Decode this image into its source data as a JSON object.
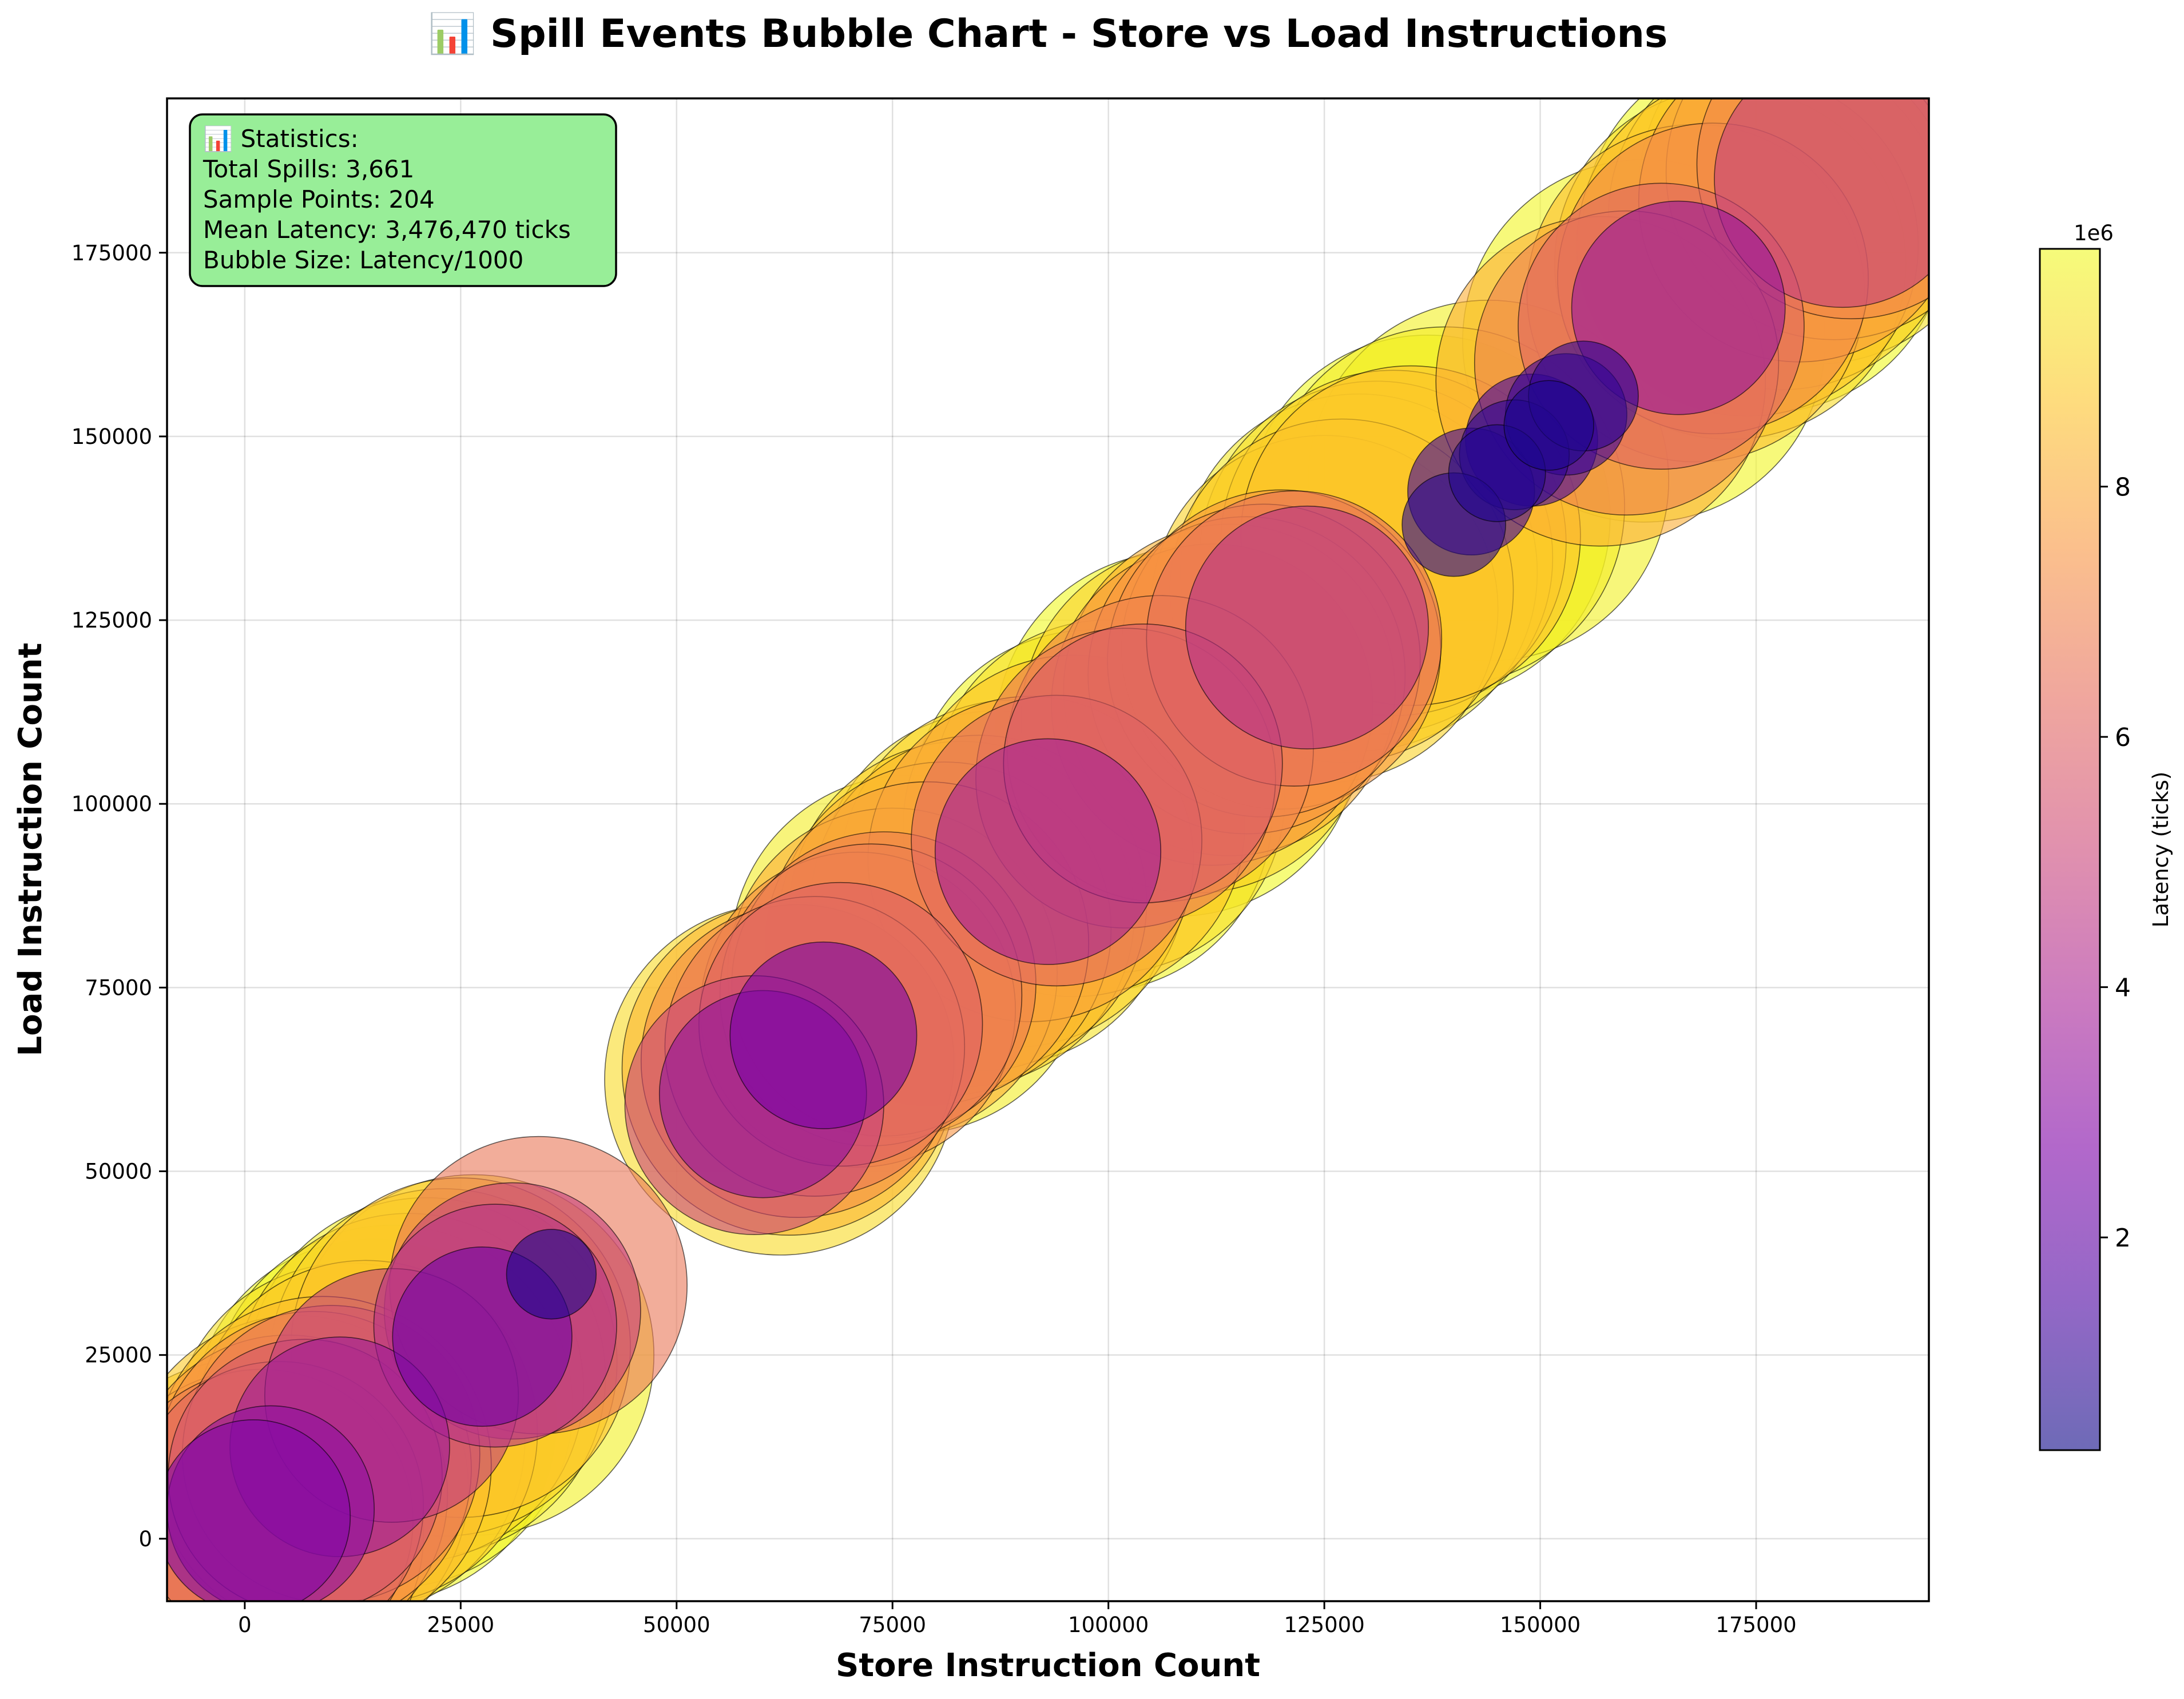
{
  "chart_data": {
    "type": "scatter",
    "title": "📊 Spill Events Bubble Chart - Store vs Load Instructions",
    "xlabel": "Store Instruction Count",
    "ylabel": "Load Instruction Count",
    "xlim": [
      -9000,
      195000
    ],
    "ylim": [
      -8500,
      196000
    ],
    "xticks": [
      0,
      25000,
      50000,
      75000,
      100000,
      125000,
      150000,
      175000
    ],
    "yticks": [
      0,
      25000,
      50000,
      75000,
      100000,
      125000,
      150000,
      175000
    ],
    "grid": true,
    "colormap": "plasma",
    "colorbar": {
      "label": "Latency (ticks)",
      "multiplier": "1e6",
      "ticks": [
        2,
        4,
        6,
        8
      ],
      "range": [
        0.3,
        9.9
      ]
    },
    "stats_box": {
      "lines": [
        "📊 Statistics:",
        "Total Spills: 3,661",
        "Sample Points: 204",
        "Mean Latency: 3,476,470 ticks",
        "Bubble Size: Latency/1000"
      ],
      "background": "#98ee98"
    },
    "points": [
      {
        "x": 0,
        "y": 1000,
        "latency": 8.8
      },
      {
        "x": 1500,
        "y": 500,
        "latency": 8.2
      },
      {
        "x": 2000,
        "y": 2500,
        "latency": 6.8
      },
      {
        "x": 1000,
        "y": 3000,
        "latency": 2.8
      },
      {
        "x": 3000,
        "y": 4000,
        "latency": 3.2
      },
      {
        "x": 4000,
        "y": 4500,
        "latency": 6.2
      },
      {
        "x": 5000,
        "y": 6000,
        "latency": 7.6
      },
      {
        "x": 6000,
        "y": 7000,
        "latency": 8.8
      },
      {
        "x": 7000,
        "y": 8500,
        "latency": 5.6
      },
      {
        "x": 8000,
        "y": 9500,
        "latency": 7.4
      },
      {
        "x": 9000,
        "y": 10000,
        "latency": 8.5
      },
      {
        "x": 10000,
        "y": 11500,
        "latency": 6.6
      },
      {
        "x": 11000,
        "y": 12500,
        "latency": 3.6
      },
      {
        "x": 12000,
        "y": 13500,
        "latency": 9.3
      },
      {
        "x": 14000,
        "y": 14500,
        "latency": 8.8
      },
      {
        "x": 15000,
        "y": 16000,
        "latency": 9.9
      },
      {
        "x": 17000,
        "y": 18000,
        "latency": 9.8
      },
      {
        "x": 17000,
        "y": 19500,
        "latency": 4.8
      },
      {
        "x": 19000,
        "y": 20500,
        "latency": 9.1
      },
      {
        "x": 21000,
        "y": 22000,
        "latency": 9.6
      },
      {
        "x": 23000,
        "y": 24000,
        "latency": 9.0
      },
      {
        "x": 25000,
        "y": 26000,
        "latency": 8.6
      },
      {
        "x": 26500,
        "y": 25000,
        "latency": 9.7
      },
      {
        "x": 27500,
        "y": 27500,
        "latency": 2.4
      },
      {
        "x": 29000,
        "y": 29000,
        "latency": 4.4
      },
      {
        "x": 31000,
        "y": 31000,
        "latency": 4.9
      },
      {
        "x": 34000,
        "y": 34500,
        "latency": 6.6
      },
      {
        "x": 35500,
        "y": 36000,
        "latency": 0.6
      },
      {
        "x": 59000,
        "y": 59000,
        "latency": 5.0
      },
      {
        "x": 60000,
        "y": 60500,
        "latency": 3.2
      },
      {
        "x": 62000,
        "y": 62500,
        "latency": 9.2
      },
      {
        "x": 63000,
        "y": 64000,
        "latency": 8.3
      },
      {
        "x": 64000,
        "y": 65000,
        "latency": 7.3
      },
      {
        "x": 66000,
        "y": 67000,
        "latency": 6.7
      },
      {
        "x": 67000,
        "y": 68500,
        "latency": 2.6
      },
      {
        "x": 69000,
        "y": 70000,
        "latency": 6.0
      },
      {
        "x": 71000,
        "y": 72000,
        "latency": 7.4
      },
      {
        "x": 72500,
        "y": 74000,
        "latency": 6.8
      },
      {
        "x": 74000,
        "y": 75500,
        "latency": 6.9
      },
      {
        "x": 75000,
        "y": 77000,
        "latency": 8.1
      },
      {
        "x": 77000,
        "y": 79500,
        "latency": 9.6
      },
      {
        "x": 79000,
        "y": 81000,
        "latency": 7.8
      },
      {
        "x": 81000,
        "y": 83000,
        "latency": 8.3
      },
      {
        "x": 83000,
        "y": 85000,
        "latency": 8.9
      },
      {
        "x": 85000,
        "y": 86500,
        "latency": 8.4
      },
      {
        "x": 87000,
        "y": 88500,
        "latency": 9.4
      },
      {
        "x": 89000,
        "y": 90500,
        "latency": 9.0
      },
      {
        "x": 91000,
        "y": 92500,
        "latency": 7.9
      },
      {
        "x": 93000,
        "y": 93500,
        "latency": 3.8
      },
      {
        "x": 94000,
        "y": 95000,
        "latency": 6.3
      },
      {
        "x": 96000,
        "y": 97000,
        "latency": 8.7
      },
      {
        "x": 98000,
        "y": 99000,
        "latency": 9.8
      },
      {
        "x": 100000,
        "y": 101000,
        "latency": 9.3
      },
      {
        "x": 102000,
        "y": 103500,
        "latency": 6.7
      },
      {
        "x": 104000,
        "y": 105500,
        "latency": 5.8
      },
      {
        "x": 106000,
        "y": 107500,
        "latency": 7.0
      },
      {
        "x": 108000,
        "y": 109500,
        "latency": 9.9
      },
      {
        "x": 110000,
        "y": 111500,
        "latency": 9.0
      },
      {
        "x": 112000,
        "y": 113500,
        "latency": 7.7
      },
      {
        "x": 114000,
        "y": 115500,
        "latency": 8.2
      },
      {
        "x": 116000,
        "y": 117500,
        "latency": 7.5
      },
      {
        "x": 118000,
        "y": 119500,
        "latency": 7.3
      },
      {
        "x": 120000,
        "y": 121000,
        "latency": 7.6
      },
      {
        "x": 121500,
        "y": 122500,
        "latency": 6.5
      },
      {
        "x": 123000,
        "y": 124000,
        "latency": 4.4
      },
      {
        "x": 125000,
        "y": 126500,
        "latency": 9.0
      },
      {
        "x": 127000,
        "y": 129000,
        "latency": 8.8
      },
      {
        "x": 129000,
        "y": 131500,
        "latency": 9.5
      },
      {
        "x": 131000,
        "y": 133500,
        "latency": 9.3
      },
      {
        "x": 133000,
        "y": 135500,
        "latency": 8.9
      },
      {
        "x": 135000,
        "y": 136500,
        "latency": 8.6
      },
      {
        "x": 137000,
        "y": 139000,
        "latency": 9.9
      },
      {
        "x": 139000,
        "y": 140500,
        "latency": 9.6
      },
      {
        "x": 140000,
        "y": 138000,
        "latency": 0.8
      },
      {
        "x": 142000,
        "y": 142500,
        "latency": 1.2
      },
      {
        "x": 144000,
        "y": 144000,
        "latency": 9.7
      },
      {
        "x": 145000,
        "y": 145000,
        "latency": 0.7
      },
      {
        "x": 147000,
        "y": 147500,
        "latency": 0.9
      },
      {
        "x": 149000,
        "y": 149500,
        "latency": 1.3
      },
      {
        "x": 151000,
        "y": 151500,
        "latency": 0.6
      },
      {
        "x": 153000,
        "y": 153000,
        "latency": 1.1
      },
      {
        "x": 155000,
        "y": 155500,
        "latency": 0.9
      },
      {
        "x": 157000,
        "y": 157500,
        "latency": 8.1
      },
      {
        "x": 160000,
        "y": 160000,
        "latency": 6.9
      },
      {
        "x": 162000,
        "y": 163000,
        "latency": 9.8
      },
      {
        "x": 164000,
        "y": 165000,
        "latency": 6.1
      },
      {
        "x": 166000,
        "y": 167500,
        "latency": 3.4
      },
      {
        "x": 168000,
        "y": 169500,
        "latency": 8.5
      },
      {
        "x": 170000,
        "y": 171500,
        "latency": 7.2
      },
      {
        "x": 172000,
        "y": 173500,
        "latency": 9.2
      },
      {
        "x": 174000,
        "y": 176000,
        "latency": 8.7
      },
      {
        "x": 176000,
        "y": 178000,
        "latency": 9.9
      },
      {
        "x": 178000,
        "y": 180000,
        "latency": 9.0
      },
      {
        "x": 180000,
        "y": 182000,
        "latency": 7.7
      },
      {
        "x": 182000,
        "y": 184000,
        "latency": 9.4
      },
      {
        "x": 184000,
        "y": 186000,
        "latency": 8.4
      },
      {
        "x": 186000,
        "y": 187000,
        "latency": 7.1
      },
      {
        "x": 185000,
        "y": 185000,
        "latency": 4.9
      }
    ]
  }
}
